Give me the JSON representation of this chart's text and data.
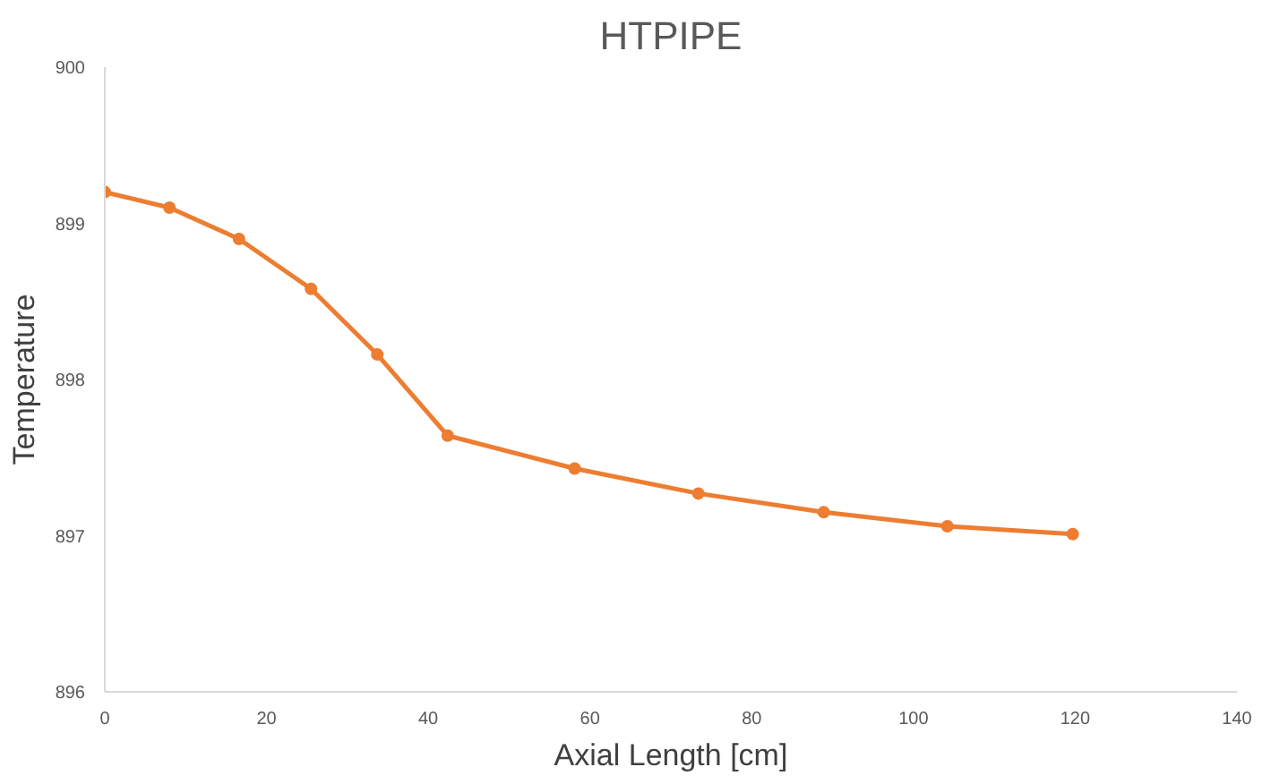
{
  "chart_data": {
    "type": "line",
    "title": "HTPIPE",
    "xlabel": "Axial Length [cm]",
    "ylabel": "Temperature",
    "x": [
      0,
      8.0,
      16.6,
      25.5,
      33.7,
      42.4,
      58.1,
      73.4,
      88.9,
      104.2,
      119.7
    ],
    "series": [
      {
        "color": "#ed7d31",
        "values": [
          899.2,
          899.1,
          898.9,
          898.58,
          898.16,
          897.64,
          897.43,
          897.27,
          897.15,
          897.06,
          897.01
        ]
      }
    ],
    "xlim": [
      0,
      140
    ],
    "xticks": [
      0,
      20,
      40,
      60,
      80,
      100,
      120,
      140
    ],
    "ylim": [
      896,
      900
    ],
    "yticks": [
      896,
      897,
      898,
      899,
      900
    ],
    "grid": false,
    "marker": "circle",
    "line_style": "solid"
  }
}
